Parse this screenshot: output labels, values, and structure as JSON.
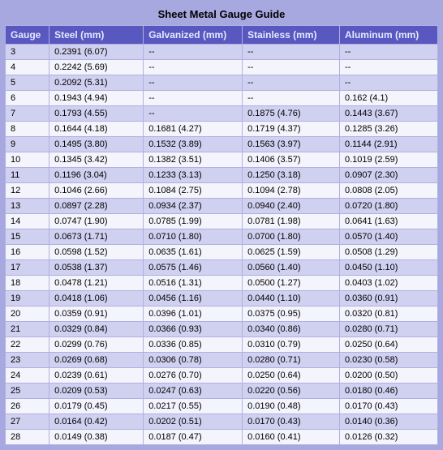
{
  "title": "Sheet Metal Gauge Guide",
  "columns": [
    "Gauge",
    "Steel (mm)",
    "Galvanized (mm)",
    "Stainless (mm)",
    "Aluminum (mm)"
  ],
  "col_widths": [
    "42px",
    "120px",
    "120px",
    "120px",
    "120px"
  ],
  "header_bg": "#5858c0",
  "header_fg": "#e8e8ff",
  "row_odd_bg": "#d0d0f0",
  "row_even_bg": "#f4f4fc",
  "border_color": "#b0b0e0",
  "page_bg": "#a8a8e0",
  "font_family": "Verdana, Arial, sans-serif",
  "title_fontsize": 13,
  "header_fontsize": 12,
  "cell_fontsize": 11,
  "rows": [
    [
      "3",
      "0.2391 (6.07)",
      "--",
      "--",
      "--"
    ],
    [
      "4",
      "0.2242 (5.69)",
      "--",
      "--",
      "--"
    ],
    [
      "5",
      "0.2092 (5.31)",
      "--",
      "--",
      "--"
    ],
    [
      "6",
      "0.1943 (4.94)",
      "--",
      "--",
      "0.162 (4.1)"
    ],
    [
      "7",
      "0.1793 (4.55)",
      "--",
      "0.1875 (4.76)",
      "0.1443 (3.67)"
    ],
    [
      "8",
      "0.1644 (4.18)",
      "0.1681 (4.27)",
      "0.1719 (4.37)",
      "0.1285 (3.26)"
    ],
    [
      "9",
      "0.1495 (3.80)",
      "0.1532 (3.89)",
      "0.1563 (3.97)",
      "0.1144 (2.91)"
    ],
    [
      "10",
      "0.1345 (3.42)",
      "0.1382 (3.51)",
      "0.1406 (3.57)",
      "0.1019 (2.59)"
    ],
    [
      "11",
      "0.1196 (3.04)",
      "0.1233 (3.13)",
      "0.1250 (3.18)",
      "0.0907 (2.30)"
    ],
    [
      "12",
      "0.1046 (2.66)",
      "0.1084 (2.75)",
      "0.1094 (2.78)",
      "0.0808 (2.05)"
    ],
    [
      "13",
      "0.0897 (2.28)",
      "0.0934 (2.37)",
      "0.0940 (2.40)",
      "0.0720 (1.80)"
    ],
    [
      "14",
      "0.0747 (1.90)",
      "0.0785 (1.99)",
      "0.0781 (1.98)",
      "0.0641 (1.63)"
    ],
    [
      "15",
      "0.0673 (1.71)",
      "0.0710 (1.80)",
      "0.0700 (1.80)",
      "0.0570 (1.40)"
    ],
    [
      "16",
      "0.0598 (1.52)",
      "0.0635 (1.61)",
      "0.0625 (1.59)",
      "0.0508 (1.29)"
    ],
    [
      "17",
      "0.0538 (1.37)",
      "0.0575 (1.46)",
      "0.0560 (1.40)",
      "0.0450 (1.10)"
    ],
    [
      "18",
      "0.0478 (1.21)",
      "0.0516 (1.31)",
      "0.0500 (1.27)",
      "0.0403 (1.02)"
    ],
    [
      "19",
      "0.0418 (1.06)",
      "0.0456 (1.16)",
      "0.0440 (1.10)",
      "0.0360 (0.91)"
    ],
    [
      "20",
      "0.0359 (0.91)",
      "0.0396 (1.01)",
      "0.0375 (0.95)",
      "0.0320 (0.81)"
    ],
    [
      "21",
      "0.0329 (0.84)",
      "0.0366 (0.93)",
      "0.0340 (0.86)",
      "0.0280 (0.71)"
    ],
    [
      "22",
      "0.0299 (0.76)",
      "0.0336 (0.85)",
      "0.0310 (0.79)",
      "0.0250 (0.64)"
    ],
    [
      "23",
      "0.0269 (0.68)",
      "0.0306 (0.78)",
      "0.0280 (0.71)",
      "0.0230 (0.58)"
    ],
    [
      "24",
      "0.0239 (0.61)",
      "0.0276 (0.70)",
      "0.0250 (0.64)",
      "0.0200 (0.50)"
    ],
    [
      "25",
      "0.0209 (0.53)",
      "0.0247 (0.63)",
      "0.0220 (0.56)",
      "0.0180 (0.46)"
    ],
    [
      "26",
      "0.0179 (0.45)",
      "0.0217 (0.55)",
      "0.0190 (0.48)",
      "0.0170 (0.43)"
    ],
    [
      "27",
      "0.0164 (0.42)",
      "0.0202 (0.51)",
      "0.0170 (0.43)",
      "0.0140 (0.36)"
    ],
    [
      "28",
      "0.0149 (0.38)",
      "0.0187 (0.47)",
      "0.0160 (0.41)",
      "0.0126 (0.32)"
    ]
  ]
}
